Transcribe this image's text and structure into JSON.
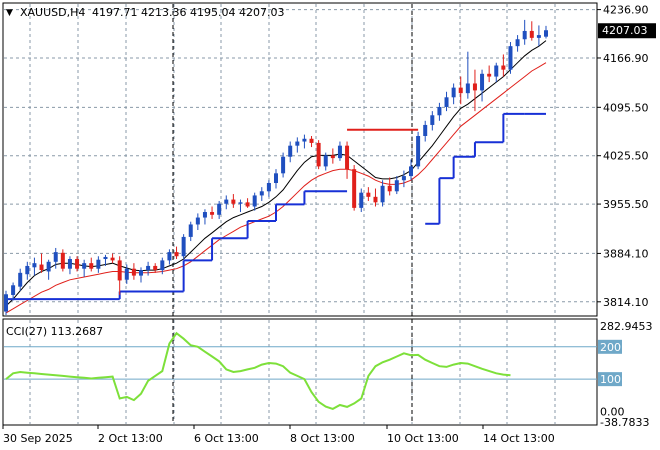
{
  "header": {
    "symbol": "XAUUSD,H4",
    "ohlc": "4197.71 4213.36 4195.04 4207.03",
    "indicator_label": "CCI(27) 113.2687"
  },
  "price_axis": {
    "ticks": [
      "4236.90",
      "4166.90",
      "4095.50",
      "4025.50",
      "3955.50",
      "3884.10",
      "3814.10"
    ],
    "tick_values": [
      4236.9,
      4166.9,
      4095.5,
      4025.5,
      3955.5,
      3884.1,
      3814.1
    ],
    "current_price": "4207.03",
    "current_value": 4207.03
  },
  "cci_axis": {
    "ticks": [
      "282.9453",
      "200",
      "100",
      "0.00",
      "-38.7833"
    ],
    "tick_values": [
      282.9453,
      200,
      100,
      0,
      -38.7833
    ],
    "levels": [
      200,
      100
    ]
  },
  "time_axis": [
    "30 Sep 2025",
    "2 Oct 13:00",
    "6 Oct 13:00",
    "8 Oct 13:00",
    "10 Oct 13:00",
    "14 Oct 13:00"
  ],
  "colors": {
    "bull": "#1F4FBF",
    "bear": "#E0201B",
    "ma_fast": "#000000",
    "ma_slow": "#E0201B",
    "stop_up": "#1730D6",
    "stop_down": "#E0201B",
    "cci": "#7DE03A",
    "grid": "#8A9AA8",
    "level": "#6FA8C8"
  },
  "chart_data": {
    "type": "candlestick",
    "symbol": "XAUUSD",
    "timeframe": "H4",
    "ylim": [
      3795,
      4245
    ],
    "candles": [
      {
        "o": 3800,
        "h": 3830,
        "l": 3795,
        "c": 3825
      },
      {
        "o": 3824,
        "h": 3842,
        "l": 3816,
        "c": 3838
      },
      {
        "o": 3836,
        "h": 3862,
        "l": 3830,
        "c": 3856
      },
      {
        "o": 3854,
        "h": 3872,
        "l": 3846,
        "c": 3866
      },
      {
        "o": 3864,
        "h": 3878,
        "l": 3852,
        "c": 3870
      },
      {
        "o": 3868,
        "h": 3884,
        "l": 3856,
        "c": 3860
      },
      {
        "o": 3858,
        "h": 3875,
        "l": 3846,
        "c": 3872
      },
      {
        "o": 3872,
        "h": 3892,
        "l": 3862,
        "c": 3886
      },
      {
        "o": 3885,
        "h": 3890,
        "l": 3858,
        "c": 3862
      },
      {
        "o": 3862,
        "h": 3880,
        "l": 3854,
        "c": 3876
      },
      {
        "o": 3876,
        "h": 3880,
        "l": 3858,
        "c": 3862
      },
      {
        "o": 3862,
        "h": 3875,
        "l": 3850,
        "c": 3870
      },
      {
        "o": 3870,
        "h": 3878,
        "l": 3858,
        "c": 3862
      },
      {
        "o": 3862,
        "h": 3880,
        "l": 3856,
        "c": 3875
      },
      {
        "o": 3876,
        "h": 3882,
        "l": 3866,
        "c": 3879
      },
      {
        "o": 3878,
        "h": 3884,
        "l": 3870,
        "c": 3874
      },
      {
        "o": 3874,
        "h": 3880,
        "l": 3824,
        "c": 3845
      },
      {
        "o": 3846,
        "h": 3868,
        "l": 3840,
        "c": 3862
      },
      {
        "o": 3862,
        "h": 3870,
        "l": 3846,
        "c": 3852
      },
      {
        "o": 3852,
        "h": 3864,
        "l": 3842,
        "c": 3860
      },
      {
        "o": 3860,
        "h": 3872,
        "l": 3852,
        "c": 3866
      },
      {
        "o": 3866,
        "h": 3870,
        "l": 3856,
        "c": 3860
      },
      {
        "o": 3860,
        "h": 3878,
        "l": 3854,
        "c": 3874
      },
      {
        "o": 3874,
        "h": 3890,
        "l": 3868,
        "c": 3886
      },
      {
        "o": 3886,
        "h": 3894,
        "l": 3876,
        "c": 3880
      },
      {
        "o": 3880,
        "h": 3912,
        "l": 3876,
        "c": 3908
      },
      {
        "o": 3908,
        "h": 3930,
        "l": 3902,
        "c": 3926
      },
      {
        "o": 3926,
        "h": 3942,
        "l": 3918,
        "c": 3936
      },
      {
        "o": 3936,
        "h": 3948,
        "l": 3926,
        "c": 3944
      },
      {
        "o": 3944,
        "h": 3952,
        "l": 3934,
        "c": 3940
      },
      {
        "o": 3940,
        "h": 3960,
        "l": 3934,
        "c": 3956
      },
      {
        "o": 3956,
        "h": 3968,
        "l": 3948,
        "c": 3962
      },
      {
        "o": 3962,
        "h": 3970,
        "l": 3950,
        "c": 3956
      },
      {
        "o": 3956,
        "h": 3962,
        "l": 3944,
        "c": 3958
      },
      {
        "o": 3958,
        "h": 3964,
        "l": 3950,
        "c": 3952
      },
      {
        "o": 3952,
        "h": 3972,
        "l": 3946,
        "c": 3968
      },
      {
        "o": 3968,
        "h": 3980,
        "l": 3960,
        "c": 3974
      },
      {
        "o": 3974,
        "h": 3990,
        "l": 3966,
        "c": 3986
      },
      {
        "o": 3986,
        "h": 4006,
        "l": 3978,
        "c": 4000
      },
      {
        "o": 4000,
        "h": 4030,
        "l": 3994,
        "c": 4024
      },
      {
        "o": 4024,
        "h": 4046,
        "l": 4016,
        "c": 4040
      },
      {
        "o": 4040,
        "h": 4052,
        "l": 4030,
        "c": 4046
      },
      {
        "o": 4046,
        "h": 4056,
        "l": 4036,
        "c": 4050
      },
      {
        "o": 4050,
        "h": 4054,
        "l": 4038,
        "c": 4044
      },
      {
        "o": 4044,
        "h": 4048,
        "l": 4006,
        "c": 4010
      },
      {
        "o": 4010,
        "h": 4030,
        "l": 4004,
        "c": 4026
      },
      {
        "o": 4026,
        "h": 4036,
        "l": 4014,
        "c": 4022
      },
      {
        "o": 4022,
        "h": 4046,
        "l": 4018,
        "c": 4040
      },
      {
        "o": 4040,
        "h": 4046,
        "l": 3992,
        "c": 4006
      },
      {
        "o": 4006,
        "h": 4012,
        "l": 3946,
        "c": 3950
      },
      {
        "o": 3950,
        "h": 3978,
        "l": 3944,
        "c": 3972
      },
      {
        "o": 3972,
        "h": 3980,
        "l": 3960,
        "c": 3966
      },
      {
        "o": 3966,
        "h": 3978,
        "l": 3952,
        "c": 3958
      },
      {
        "o": 3958,
        "h": 3990,
        "l": 3952,
        "c": 3982
      },
      {
        "o": 3982,
        "h": 3994,
        "l": 3968,
        "c": 3974
      },
      {
        "o": 3974,
        "h": 3996,
        "l": 3970,
        "c": 3990
      },
      {
        "o": 3990,
        "h": 4004,
        "l": 3980,
        "c": 3996
      },
      {
        "o": 3996,
        "h": 4020,
        "l": 3990,
        "c": 4010
      },
      {
        "o": 4010,
        "h": 4060,
        "l": 4006,
        "c": 4054
      },
      {
        "o": 4054,
        "h": 4076,
        "l": 4046,
        "c": 4070
      },
      {
        "o": 4070,
        "h": 4090,
        "l": 4062,
        "c": 4084
      },
      {
        "o": 4084,
        "h": 4102,
        "l": 4076,
        "c": 4096
      },
      {
        "o": 4096,
        "h": 4118,
        "l": 4090,
        "c": 4110
      },
      {
        "o": 4110,
        "h": 4130,
        "l": 4100,
        "c": 4124
      },
      {
        "o": 4124,
        "h": 4140,
        "l": 4100,
        "c": 4116
      },
      {
        "o": 4116,
        "h": 4176,
        "l": 4108,
        "c": 4130
      },
      {
        "o": 4130,
        "h": 4150,
        "l": 4090,
        "c": 4120
      },
      {
        "o": 4120,
        "h": 4150,
        "l": 4104,
        "c": 4144
      },
      {
        "o": 4144,
        "h": 4156,
        "l": 4132,
        "c": 4140
      },
      {
        "o": 4140,
        "h": 4160,
        "l": 4132,
        "c": 4156
      },
      {
        "o": 4156,
        "h": 4172,
        "l": 4140,
        "c": 4150
      },
      {
        "o": 4150,
        "h": 4190,
        "l": 4144,
        "c": 4184
      },
      {
        "o": 4184,
        "h": 4200,
        "l": 4176,
        "c": 4194
      },
      {
        "o": 4194,
        "h": 4222,
        "l": 4186,
        "c": 4206
      },
      {
        "o": 4206,
        "h": 4220,
        "l": 4192,
        "c": 4196
      },
      {
        "o": 4196,
        "h": 4214,
        "l": 4184,
        "c": 4200
      },
      {
        "o": 4197.71,
        "h": 4213.36,
        "l": 4195.04,
        "c": 4207.03
      }
    ],
    "ma_fast": [
      3808,
      3818,
      3830,
      3842,
      3852,
      3858,
      3862,
      3868,
      3870,
      3870,
      3868,
      3866,
      3865,
      3866,
      3868,
      3870,
      3866,
      3863,
      3860,
      3859,
      3860,
      3860,
      3862,
      3866,
      3870,
      3876,
      3886,
      3896,
      3906,
      3914,
      3922,
      3930,
      3936,
      3940,
      3944,
      3948,
      3952,
      3958,
      3966,
      3976,
      3990,
      4004,
      4016,
      4024,
      4026,
      4026,
      4026,
      4028,
      4026,
      4018,
      4010,
      4002,
      3994,
      3992,
      3992,
      3994,
      3998,
      4004,
      4016,
      4028,
      4040,
      4054,
      4068,
      4082,
      4094,
      4100,
      4108,
      4116,
      4124,
      4132,
      4140,
      4150,
      4160,
      4170,
      4178,
      4184,
      4192
    ],
    "ma_slow": [
      3798,
      3804,
      3810,
      3816,
      3822,
      3828,
      3832,
      3838,
      3842,
      3846,
      3848,
      3850,
      3852,
      3854,
      3856,
      3858,
      3858,
      3857,
      3856,
      3856,
      3856,
      3857,
      3858,
      3860,
      3862,
      3866,
      3872,
      3880,
      3888,
      3896,
      3904,
      3910,
      3916,
      3922,
      3926,
      3930,
      3934,
      3938,
      3944,
      3952,
      3962,
      3972,
      3982,
      3990,
      3996,
      4000,
      4004,
      4006,
      4006,
      4004,
      4000,
      3996,
      3990,
      3986,
      3984,
      3984,
      3986,
      3990,
      3998,
      4008,
      4020,
      4032,
      4044,
      4056,
      4068,
      4076,
      4084,
      4092,
      4100,
      4108,
      4116,
      4124,
      4132,
      4140,
      4148,
      4154,
      4160
    ],
    "stop_line": [
      {
        "from": 0,
        "to": 16,
        "value": 3818,
        "dir": "up"
      },
      {
        "from": 16,
        "to": 25,
        "value": 3829,
        "dir": "up"
      },
      {
        "from": 25,
        "to": 29,
        "value": 3874,
        "dir": "up"
      },
      {
        "from": 29,
        "to": 34,
        "value": 3906,
        "dir": "up"
      },
      {
        "from": 34,
        "to": 38,
        "value": 3931,
        "dir": "up"
      },
      {
        "from": 38,
        "to": 42,
        "value": 3955,
        "dir": "up"
      },
      {
        "from": 42,
        "to": 48,
        "value": 3974,
        "dir": "up"
      },
      {
        "from": 48,
        "to": 58,
        "value": 4063,
        "dir": "down"
      },
      {
        "from": 59,
        "to": 61,
        "value": 3927,
        "dir": "up"
      },
      {
        "from": 61,
        "to": 63,
        "value": 3993,
        "dir": "up"
      },
      {
        "from": 63,
        "to": 66,
        "value": 4024,
        "dir": "up"
      },
      {
        "from": 66,
        "to": 70,
        "value": 4045,
        "dir": "up"
      },
      {
        "from": 70,
        "to": 73,
        "value": 4086,
        "dir": "up"
      },
      {
        "from": 73,
        "to": 76,
        "value": 4086,
        "dir": "up"
      }
    ],
    "cci_ylim": [
      -38.7833,
      282.9453
    ],
    "cci": [
      100,
      118,
      122,
      120,
      118,
      116,
      114,
      112,
      110,
      108,
      106,
      104,
      102,
      104,
      106,
      108,
      40,
      45,
      35,
      55,
      95,
      110,
      125,
      210,
      242,
      225,
      205,
      200,
      185,
      170,
      155,
      130,
      122,
      125,
      130,
      135,
      145,
      150,
      148,
      140,
      120,
      110,
      100,
      60,
      30,
      15,
      8,
      20,
      14,
      25,
      40,
      110,
      140,
      152,
      160,
      170,
      180,
      174,
      175,
      160,
      150,
      140,
      138,
      145,
      150,
      148,
      140,
      132,
      125,
      118,
      114,
      112
    ],
    "cci_from_index": 0
  }
}
